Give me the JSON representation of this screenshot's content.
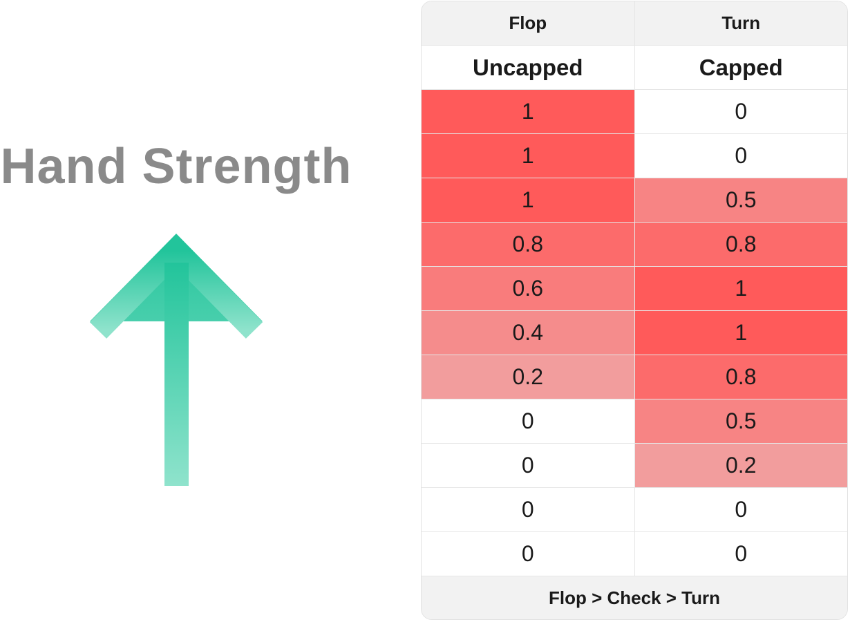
{
  "label": "Hand Strength",
  "table": {
    "headers": [
      "Flop",
      "Turn"
    ],
    "subheaders": [
      "Uncapped",
      "Capped"
    ],
    "rows": [
      [
        1,
        0
      ],
      [
        1,
        0
      ],
      [
        1,
        0.5
      ],
      [
        0.8,
        0.8
      ],
      [
        0.6,
        1
      ],
      [
        0.4,
        1
      ],
      [
        0.2,
        0.8
      ],
      [
        0,
        0.5
      ],
      [
        0,
        0.2
      ],
      [
        0,
        0
      ],
      [
        0,
        0
      ]
    ],
    "footer": "Flop > Check > Turn"
  }
}
